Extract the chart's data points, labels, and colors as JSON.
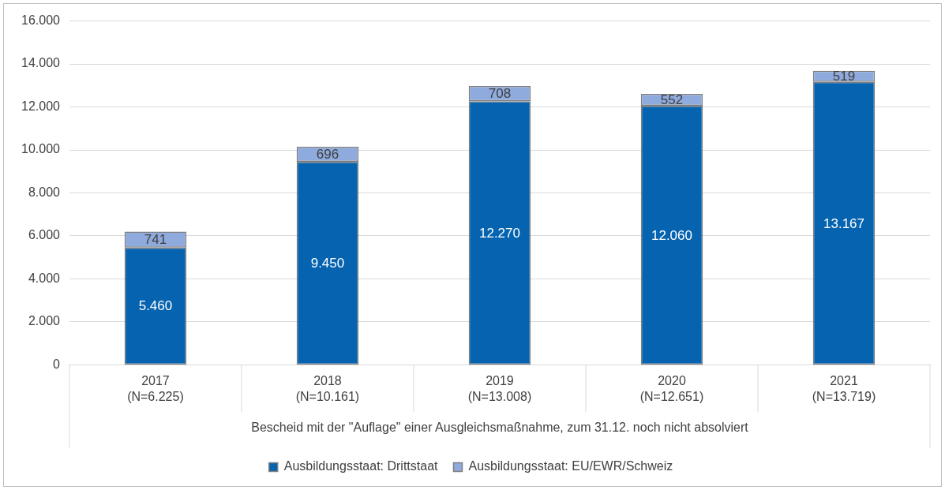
{
  "chart_data": {
    "type": "bar",
    "stacked": true,
    "categories": [
      "2017\n(N=6.225)",
      "2018\n(N=10.161)",
      "2019\n(N=13.008)",
      "2020\n(N=12.651)",
      "2021\n(N=13.719)"
    ],
    "xlabel": "Bescheid mit der \"Auflage\" einer Ausgleichsmaßnahme, zum 31.12. noch nicht absolviert",
    "series": [
      {
        "name": "Ausbildungsstaat: Drittstaat",
        "color": "#0563b0",
        "values": [
          5460,
          9450,
          12270,
          12060,
          13167
        ],
        "value_labels": [
          "5.460",
          "9.450",
          "12.270",
          "12.060",
          "13.167"
        ]
      },
      {
        "name": "Ausbildungsstaat: EU/EWR/Schweiz",
        "color": "#8faadc",
        "values": [
          741,
          696,
          708,
          552,
          519
        ],
        "value_labels": [
          "741",
          "696",
          "708",
          "552",
          "519"
        ]
      }
    ],
    "ylim": [
      0,
      16000
    ],
    "yticks": [
      {
        "value": 0,
        "label": "0"
      },
      {
        "value": 2000,
        "label": "2.000"
      },
      {
        "value": 4000,
        "label": "4.000"
      },
      {
        "value": 6000,
        "label": "6.000"
      },
      {
        "value": 8000,
        "label": "8.000"
      },
      {
        "value": 10000,
        "label": "10.000"
      },
      {
        "value": 12000,
        "label": "12.000"
      },
      {
        "value": 14000,
        "label": "14.000"
      },
      {
        "value": 16000,
        "label": "16.000"
      }
    ],
    "grid": "y",
    "legend": "bottom"
  }
}
